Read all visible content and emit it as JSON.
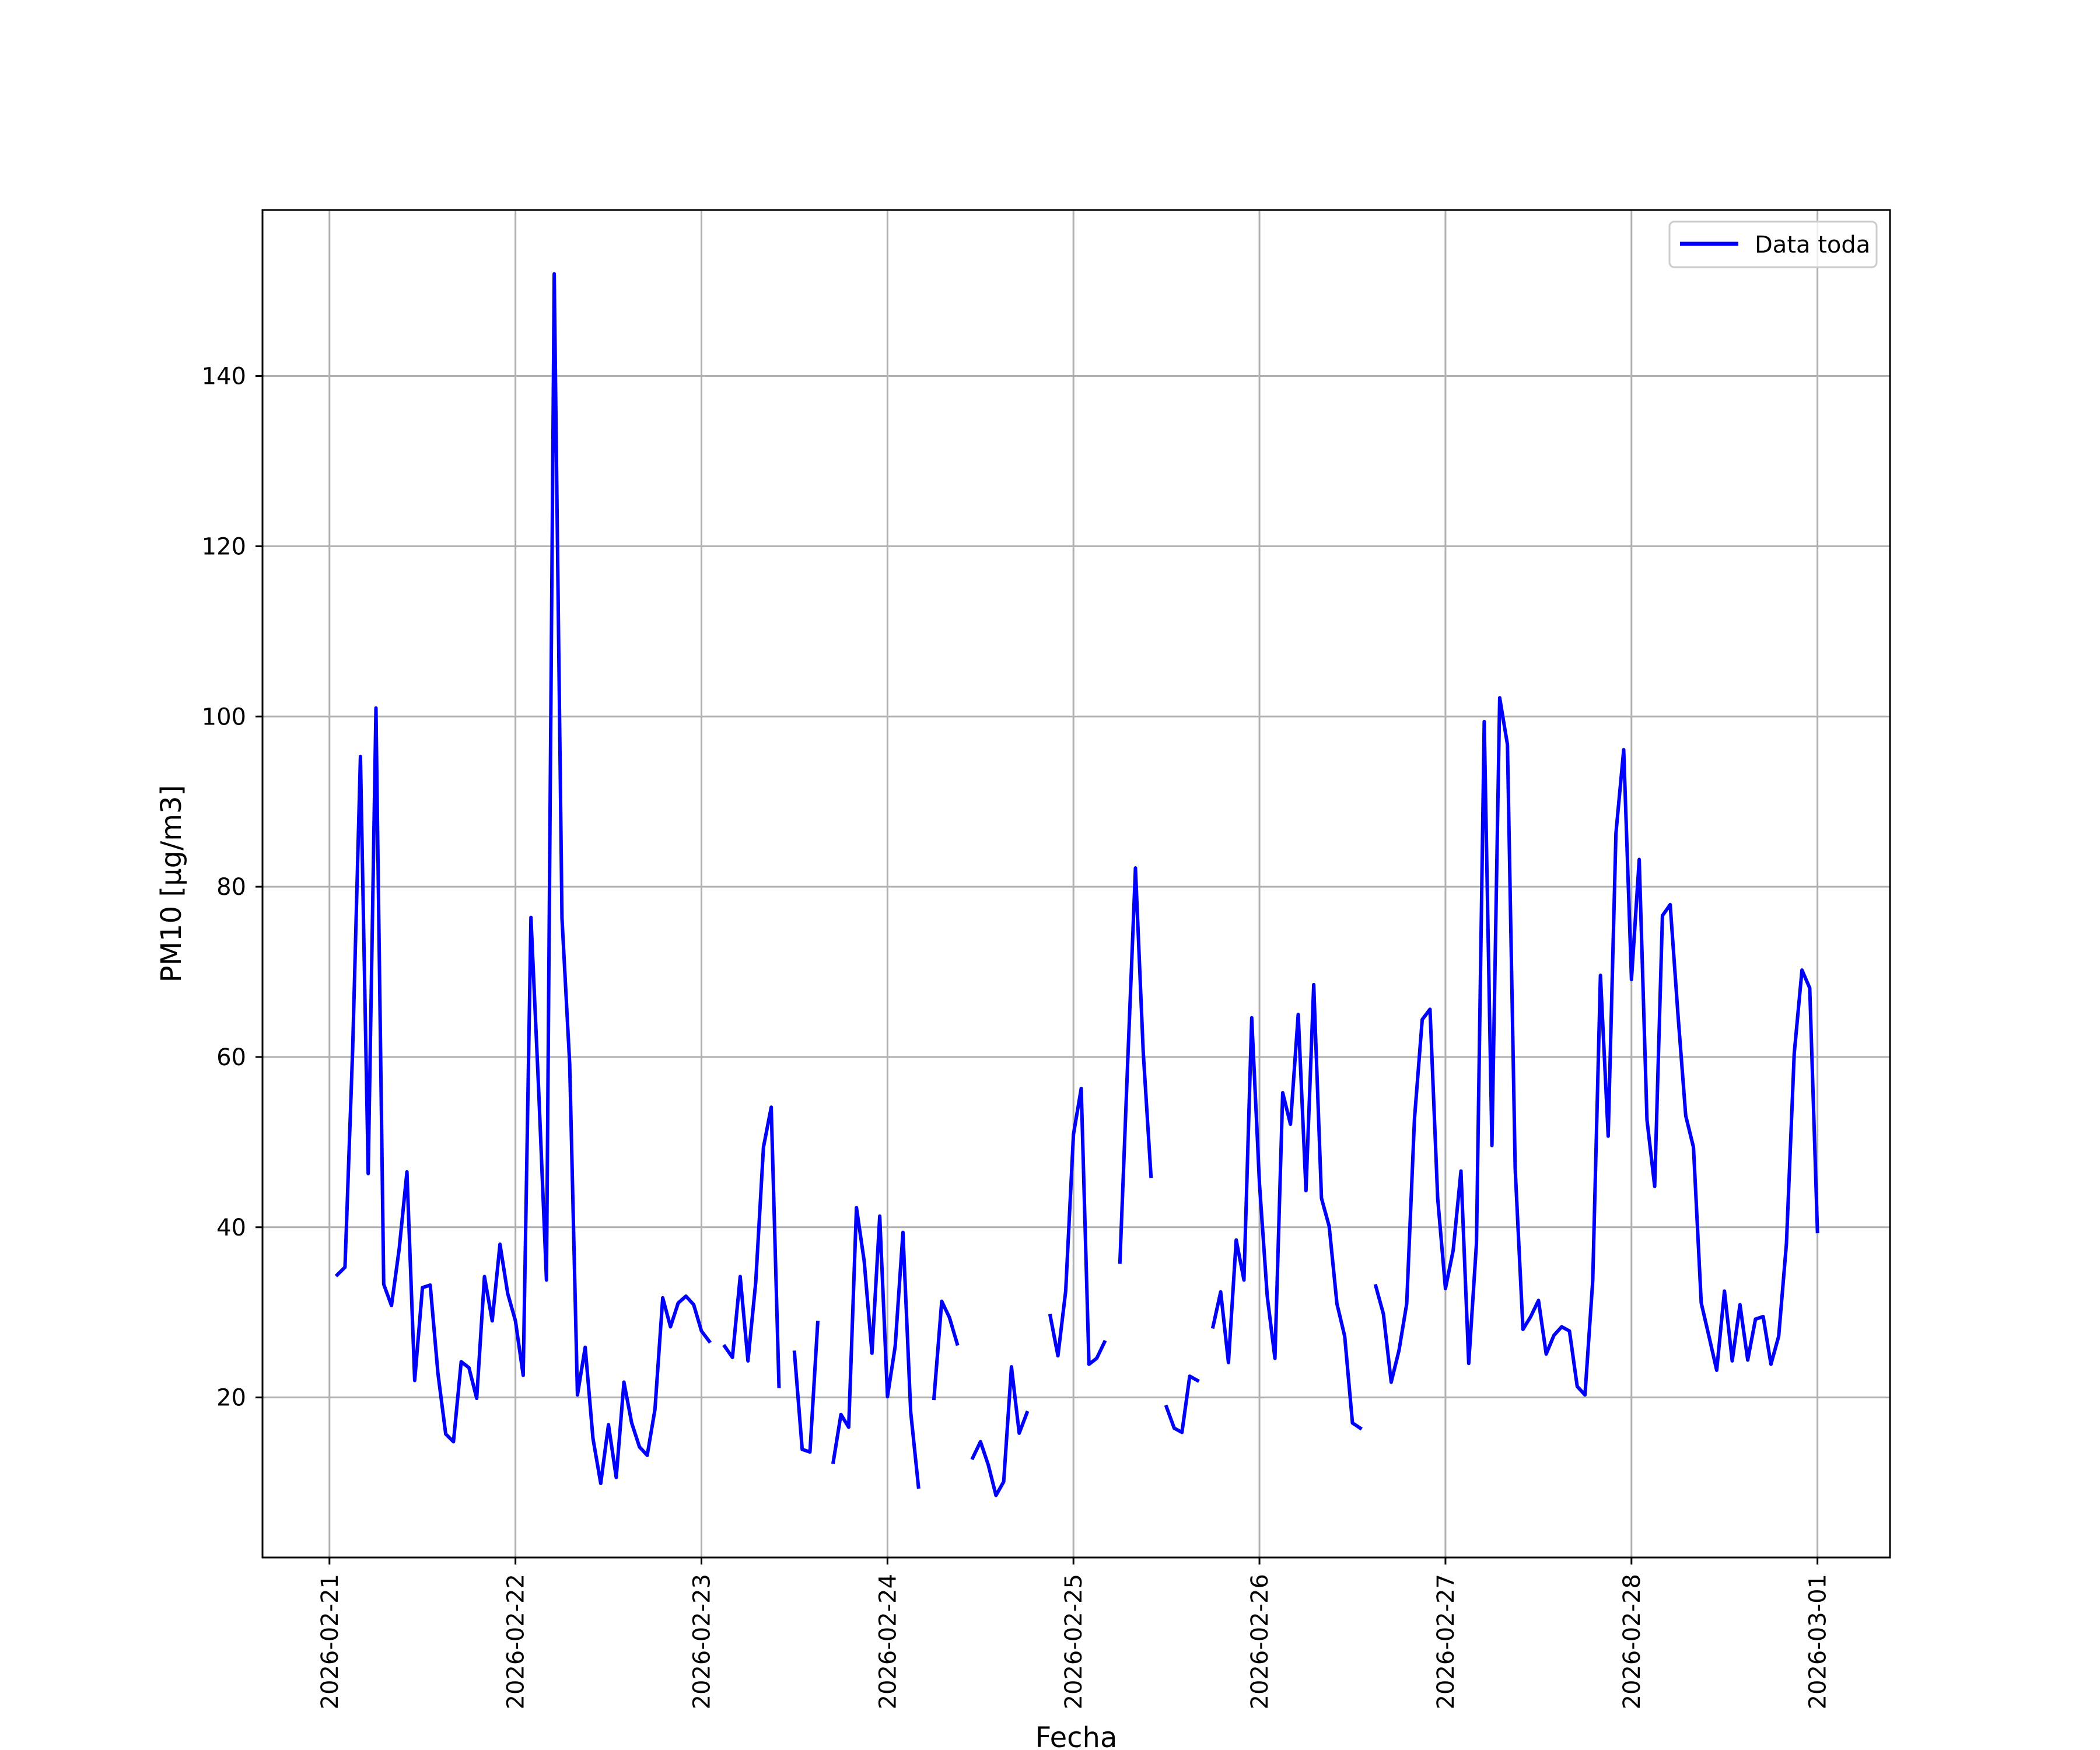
{
  "chart_data": {
    "type": "line",
    "title": "",
    "xlabel": "Fecha",
    "ylabel": "PM10 [μg/m3]",
    "ylim": [
      1.2,
      159.5
    ],
    "xlim_days": [
      -0.36,
      8.39
    ],
    "x_ticks": [
      "2026-02-21",
      "2026-02-22",
      "2026-02-23",
      "2026-02-24",
      "2026-02-25",
      "2026-02-26",
      "2026-02-27",
      "2026-02-28",
      "2026-03-01"
    ],
    "y_ticks": [
      20,
      40,
      60,
      80,
      100,
      120,
      140
    ],
    "grid": true,
    "legend": {
      "position": "top-right"
    },
    "series": [
      {
        "name": "Data toda",
        "color": "#0000ff",
        "points": [
          [
            "2026-02-21 01:00",
            34.4
          ],
          [
            "2026-02-21 02:00",
            35.3
          ],
          [
            "2026-02-21 03:00",
            61.0
          ],
          [
            "2026-02-21 04:00",
            95.3
          ],
          [
            "2026-02-21 05:00",
            46.3
          ],
          [
            "2026-02-21 06:00",
            101.0
          ],
          [
            "2026-02-21 07:00",
            33.3
          ],
          [
            "2026-02-21 08:00",
            30.8
          ],
          [
            "2026-02-21 09:00",
            37.5
          ],
          [
            "2026-02-21 10:00",
            46.5
          ],
          [
            "2026-02-21 11:00",
            22.0
          ],
          [
            "2026-02-21 12:00",
            32.9
          ],
          [
            "2026-02-21 13:00",
            33.2
          ],
          [
            "2026-02-21 14:00",
            22.8
          ],
          [
            "2026-02-21 15:00",
            15.7
          ],
          [
            "2026-02-21 16:00",
            14.8
          ],
          [
            "2026-02-21 17:00",
            24.2
          ],
          [
            "2026-02-21 18:00",
            23.5
          ],
          [
            "2026-02-21 19:00",
            19.9
          ],
          [
            "2026-02-21 20:00",
            34.2
          ],
          [
            "2026-02-21 21:00",
            29.0
          ],
          [
            "2026-02-21 22:00",
            38.0
          ],
          [
            "2026-02-21 23:00",
            32.2
          ],
          [
            "2026-02-22 00:00",
            29.0
          ],
          [
            "2026-02-22 01:00",
            22.6
          ],
          [
            "2026-02-22 02:00",
            76.4
          ],
          [
            "2026-02-22 03:00",
            56.0
          ],
          [
            "2026-02-22 04:00",
            33.8
          ],
          [
            "2026-02-22 05:00",
            152.0
          ],
          [
            "2026-02-22 06:00",
            76.3
          ],
          [
            "2026-02-22 07:00",
            59.2
          ],
          [
            "2026-02-22 08:00",
            20.3
          ],
          [
            "2026-02-22 09:00",
            25.9
          ],
          [
            "2026-02-22 10:00",
            15.2
          ],
          [
            "2026-02-22 11:00",
            9.9
          ],
          [
            "2026-02-22 12:00",
            16.8
          ],
          [
            "2026-02-22 13:00",
            10.6
          ],
          [
            "2026-02-22 14:00",
            21.8
          ],
          [
            "2026-02-22 15:00",
            17.0
          ],
          [
            "2026-02-22 16:00",
            14.2
          ],
          [
            "2026-02-22 17:00",
            13.2
          ],
          [
            "2026-02-22 18:00",
            18.6
          ],
          [
            "2026-02-22 19:00",
            31.7
          ],
          [
            "2026-02-22 20:00",
            28.3
          ],
          [
            "2026-02-22 21:00",
            31.1
          ],
          [
            "2026-02-22 22:00",
            31.9
          ],
          [
            "2026-02-22 23:00",
            30.9
          ],
          [
            "2026-02-23 00:00",
            27.8
          ],
          [
            "2026-02-23 01:00",
            26.6
          ],
          [
            "2026-02-23 02:00",
            null
          ],
          [
            "2026-02-23 03:00",
            26.0
          ],
          [
            "2026-02-23 04:00",
            24.7
          ],
          [
            "2026-02-23 05:00",
            34.2
          ],
          [
            "2026-02-23 06:00",
            24.3
          ],
          [
            "2026-02-23 07:00",
            33.5
          ],
          [
            "2026-02-23 08:00",
            49.4
          ],
          [
            "2026-02-23 09:00",
            54.1
          ],
          [
            "2026-02-23 10:00",
            21.3
          ],
          [
            "2026-02-23 11:00",
            null
          ],
          [
            "2026-02-23 12:00",
            25.3
          ],
          [
            "2026-02-23 13:00",
            13.9
          ],
          [
            "2026-02-23 14:00",
            13.6
          ],
          [
            "2026-02-23 15:00",
            28.8
          ],
          [
            "2026-02-23 16:00",
            null
          ],
          [
            "2026-02-23 17:00",
            12.4
          ],
          [
            "2026-02-23 18:00",
            18.0
          ],
          [
            "2026-02-23 19:00",
            16.5
          ],
          [
            "2026-02-23 20:00",
            42.3
          ],
          [
            "2026-02-23 21:00",
            36.0
          ],
          [
            "2026-02-23 22:00",
            25.2
          ],
          [
            "2026-02-23 23:00",
            41.3
          ],
          [
            "2026-02-24 00:00",
            20.1
          ],
          [
            "2026-02-24 01:00",
            26.0
          ],
          [
            "2026-02-24 02:00",
            39.4
          ],
          [
            "2026-02-24 03:00",
            18.3
          ],
          [
            "2026-02-24 04:00",
            9.5
          ],
          [
            "2026-02-24 05:00",
            null
          ],
          [
            "2026-02-24 06:00",
            19.9
          ],
          [
            "2026-02-24 07:00",
            31.3
          ],
          [
            "2026-02-24 08:00",
            29.4
          ],
          [
            "2026-02-24 09:00",
            26.3
          ],
          [
            "2026-02-24 10:00",
            null
          ],
          [
            "2026-02-24 11:00",
            12.9
          ],
          [
            "2026-02-24 12:00",
            14.8
          ],
          [
            "2026-02-24 13:00",
            12.1
          ],
          [
            "2026-02-24 14:00",
            8.5
          ],
          [
            "2026-02-24 15:00",
            10.1
          ],
          [
            "2026-02-24 16:00",
            23.6
          ],
          [
            "2026-02-24 17:00",
            15.8
          ],
          [
            "2026-02-24 18:00",
            18.2
          ],
          [
            "2026-02-24 19:00",
            null
          ],
          [
            "2026-02-24 20:00",
            null
          ],
          [
            "2026-02-24 21:00",
            29.6
          ],
          [
            "2026-02-24 22:00",
            24.9
          ],
          [
            "2026-02-24 23:00",
            32.5
          ],
          [
            "2026-02-25 00:00",
            50.9
          ],
          [
            "2026-02-25 01:00",
            56.3
          ],
          [
            "2026-02-25 02:00",
            23.9
          ],
          [
            "2026-02-25 03:00",
            24.6
          ],
          [
            "2026-02-25 04:00",
            26.5
          ],
          [
            "2026-02-25 05:00",
            null
          ],
          [
            "2026-02-25 06:00",
            35.9
          ],
          [
            "2026-02-25 07:00",
            59.4
          ],
          [
            "2026-02-25 08:00",
            82.2
          ],
          [
            "2026-02-25 09:00",
            60.6
          ],
          [
            "2026-02-25 10:00",
            46.0
          ],
          [
            "2026-02-25 11:00",
            null
          ],
          [
            "2026-02-25 12:00",
            18.9
          ],
          [
            "2026-02-25 13:00",
            16.4
          ],
          [
            "2026-02-25 14:00",
            15.9
          ],
          [
            "2026-02-25 15:00",
            22.5
          ],
          [
            "2026-02-25 16:00",
            22.0
          ],
          [
            "2026-02-25 17:00",
            null
          ],
          [
            "2026-02-25 18:00",
            28.3
          ],
          [
            "2026-02-25 19:00",
            32.4
          ],
          [
            "2026-02-25 20:00",
            24.1
          ],
          [
            "2026-02-25 21:00",
            38.5
          ],
          [
            "2026-02-25 22:00",
            33.8
          ],
          [
            "2026-02-25 23:00",
            64.6
          ],
          [
            "2026-02-26 00:00",
            45.1
          ],
          [
            "2026-02-26 01:00",
            31.9
          ],
          [
            "2026-02-26 02:00",
            24.6
          ],
          [
            "2026-02-26 03:00",
            55.8
          ],
          [
            "2026-02-26 04:00",
            52.1
          ],
          [
            "2026-02-26 05:00",
            65.0
          ],
          [
            "2026-02-26 06:00",
            44.3
          ],
          [
            "2026-02-26 07:00",
            68.5
          ],
          [
            "2026-02-26 08:00",
            43.4
          ],
          [
            "2026-02-26 09:00",
            40.1
          ],
          [
            "2026-02-26 10:00",
            31.0
          ],
          [
            "2026-02-26 11:00",
            27.2
          ],
          [
            "2026-02-26 12:00",
            17.0
          ],
          [
            "2026-02-26 13:00",
            16.4
          ],
          [
            "2026-02-26 14:00",
            null
          ],
          [
            "2026-02-26 15:00",
            33.1
          ],
          [
            "2026-02-26 16:00",
            29.8
          ],
          [
            "2026-02-26 17:00",
            21.8
          ],
          [
            "2026-02-26 18:00",
            25.5
          ],
          [
            "2026-02-26 19:00",
            31.0
          ],
          [
            "2026-02-26 20:00",
            52.7
          ],
          [
            "2026-02-26 21:00",
            64.4
          ],
          [
            "2026-02-26 22:00",
            65.6
          ],
          [
            "2026-02-26 23:00",
            43.4
          ],
          [
            "2026-02-27 00:00",
            32.8
          ],
          [
            "2026-02-27 01:00",
            37.3
          ],
          [
            "2026-02-27 02:00",
            46.6
          ],
          [
            "2026-02-27 03:00",
            24.0
          ],
          [
            "2026-02-27 04:00",
            38.1
          ],
          [
            "2026-02-27 05:00",
            99.4
          ],
          [
            "2026-02-27 06:00",
            49.6
          ],
          [
            "2026-02-27 07:00",
            102.2
          ],
          [
            "2026-02-27 08:00",
            96.7
          ],
          [
            "2026-02-27 09:00",
            46.8
          ],
          [
            "2026-02-27 10:00",
            28.0
          ],
          [
            "2026-02-27 11:00",
            29.5
          ],
          [
            "2026-02-27 12:00",
            31.4
          ],
          [
            "2026-02-27 13:00",
            25.1
          ],
          [
            "2026-02-27 14:00",
            27.3
          ],
          [
            "2026-02-27 15:00",
            28.3
          ],
          [
            "2026-02-27 16:00",
            27.8
          ],
          [
            "2026-02-27 17:00",
            21.3
          ],
          [
            "2026-02-27 18:00",
            20.3
          ],
          [
            "2026-02-27 19:00",
            33.7
          ],
          [
            "2026-02-27 20:00",
            69.6
          ],
          [
            "2026-02-27 21:00",
            50.7
          ],
          [
            "2026-02-27 22:00",
            86.3
          ],
          [
            "2026-02-27 23:00",
            96.1
          ],
          [
            "2026-02-28 00:00",
            69.1
          ],
          [
            "2026-02-28 01:00",
            83.2
          ],
          [
            "2026-02-28 02:00",
            52.6
          ],
          [
            "2026-02-28 03:00",
            44.8
          ],
          [
            "2026-02-28 04:00",
            76.6
          ],
          [
            "2026-02-28 05:00",
            77.9
          ],
          [
            "2026-02-28 06:00",
            65.0
          ],
          [
            "2026-02-28 07:00",
            53.1
          ],
          [
            "2026-02-28 08:00",
            49.4
          ],
          [
            "2026-02-28 09:00",
            31.1
          ],
          [
            "2026-02-28 10:00",
            27.2
          ],
          [
            "2026-02-28 11:00",
            23.2
          ],
          [
            "2026-02-28 12:00",
            32.5
          ],
          [
            "2026-02-28 13:00",
            24.3
          ],
          [
            "2026-02-28 14:00",
            30.9
          ],
          [
            "2026-02-28 15:00",
            24.4
          ],
          [
            "2026-02-28 16:00",
            29.2
          ],
          [
            "2026-02-28 17:00",
            29.5
          ],
          [
            "2026-02-28 18:00",
            23.9
          ],
          [
            "2026-02-28 19:00",
            27.2
          ],
          [
            "2026-02-28 20:00",
            38.1
          ],
          [
            "2026-02-28 21:00",
            60.4
          ],
          [
            "2026-02-28 22:00",
            70.2
          ],
          [
            "2026-02-28 23:00",
            68.1
          ],
          [
            "2026-03-01 00:00",
            39.5
          ]
        ]
      }
    ]
  }
}
